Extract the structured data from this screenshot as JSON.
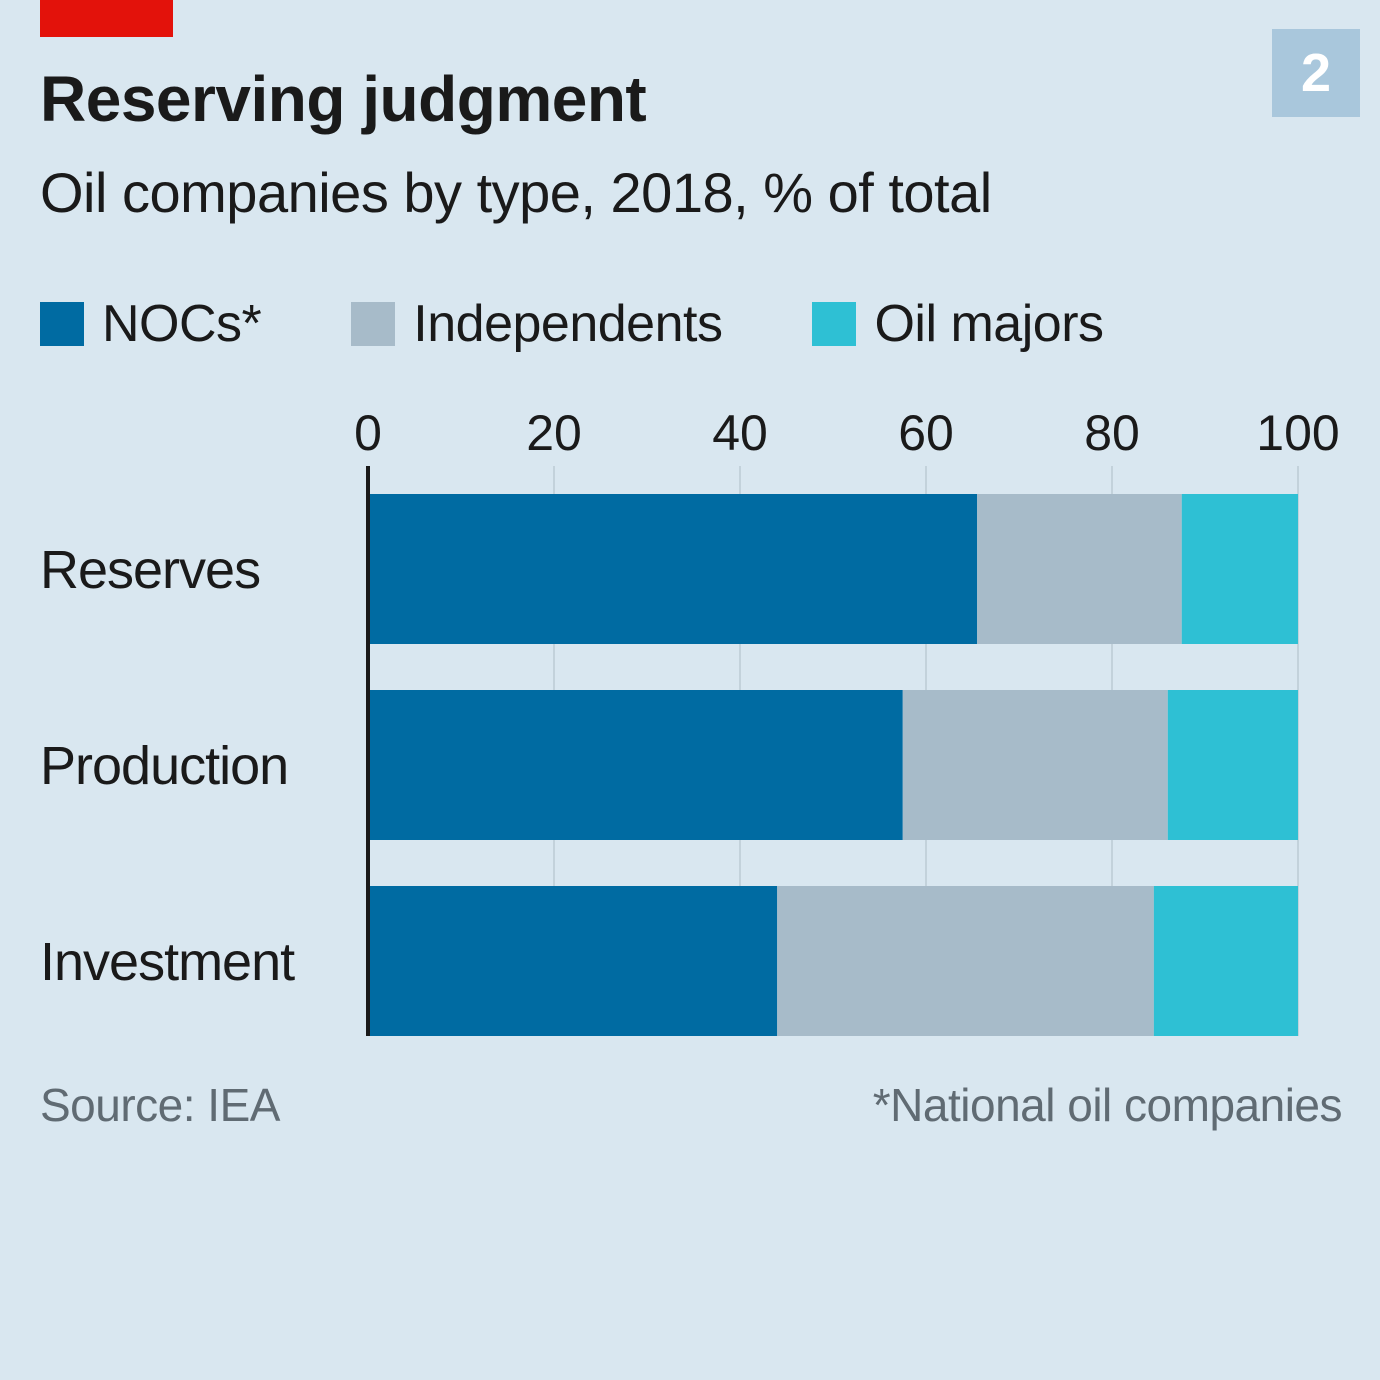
{
  "colors": {
    "background": "#d9e7f0",
    "brand_red": "#e3120b",
    "badge_bg": "#a9c7dc",
    "gridline": "#c3d2db",
    "axis": "#1a1a1a",
    "tick_text": "#1a1a1a"
  },
  "badge": "2",
  "chart_data": {
    "type": "bar",
    "orientation": "horizontal",
    "stacked": true,
    "title": "Reserving judgment",
    "subtitle": "Oil companies by type, 2018, % of total",
    "categories": [
      "Reserves",
      "Production",
      "Investment"
    ],
    "series": [
      {
        "name": "NOCs*",
        "color": "#006ba2",
        "values": [
          65.5,
          57.5,
          44
        ]
      },
      {
        "name": "Independents",
        "color": "#a7bbc9",
        "values": [
          22,
          28.5,
          40.5
        ]
      },
      {
        "name": "Oil majors",
        "color": "#2ec0d4",
        "values": [
          12.5,
          14,
          15.5
        ]
      }
    ],
    "xlim": [
      0,
      100
    ],
    "xticks": [
      0,
      20,
      40,
      60,
      80,
      100
    ],
    "xtick_labels": [
      "0",
      "20",
      "40",
      "60",
      "80",
      "100"
    ],
    "xlabel": "",
    "ylabel": "",
    "grid": true,
    "legend_position": "top-left",
    "source": "Source: IEA",
    "footnote": "*National oil companies"
  }
}
